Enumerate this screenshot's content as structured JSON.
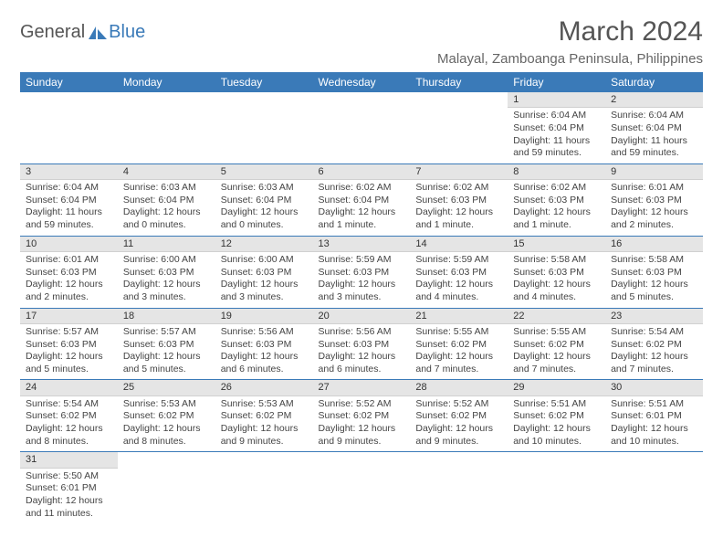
{
  "logo": {
    "general": "General",
    "blue": "Blue"
  },
  "title": "March 2024",
  "location": "Malayal, Zamboanga Peninsula, Philippines",
  "colors": {
    "header_bg": "#3a7ab8",
    "header_text": "#ffffff",
    "daynum_bg": "#e5e5e5",
    "border": "#3a7ab8",
    "text": "#444444"
  },
  "day_headers": [
    "Sunday",
    "Monday",
    "Tuesday",
    "Wednesday",
    "Thursday",
    "Friday",
    "Saturday"
  ],
  "weeks": [
    [
      null,
      null,
      null,
      null,
      null,
      {
        "n": "1",
        "sunrise": "Sunrise: 6:04 AM",
        "sunset": "Sunset: 6:04 PM",
        "daylight": "Daylight: 11 hours and 59 minutes."
      },
      {
        "n": "2",
        "sunrise": "Sunrise: 6:04 AM",
        "sunset": "Sunset: 6:04 PM",
        "daylight": "Daylight: 11 hours and 59 minutes."
      }
    ],
    [
      {
        "n": "3",
        "sunrise": "Sunrise: 6:04 AM",
        "sunset": "Sunset: 6:04 PM",
        "daylight": "Daylight: 11 hours and 59 minutes."
      },
      {
        "n": "4",
        "sunrise": "Sunrise: 6:03 AM",
        "sunset": "Sunset: 6:04 PM",
        "daylight": "Daylight: 12 hours and 0 minutes."
      },
      {
        "n": "5",
        "sunrise": "Sunrise: 6:03 AM",
        "sunset": "Sunset: 6:04 PM",
        "daylight": "Daylight: 12 hours and 0 minutes."
      },
      {
        "n": "6",
        "sunrise": "Sunrise: 6:02 AM",
        "sunset": "Sunset: 6:04 PM",
        "daylight": "Daylight: 12 hours and 1 minute."
      },
      {
        "n": "7",
        "sunrise": "Sunrise: 6:02 AM",
        "sunset": "Sunset: 6:03 PM",
        "daylight": "Daylight: 12 hours and 1 minute."
      },
      {
        "n": "8",
        "sunrise": "Sunrise: 6:02 AM",
        "sunset": "Sunset: 6:03 PM",
        "daylight": "Daylight: 12 hours and 1 minute."
      },
      {
        "n": "9",
        "sunrise": "Sunrise: 6:01 AM",
        "sunset": "Sunset: 6:03 PM",
        "daylight": "Daylight: 12 hours and 2 minutes."
      }
    ],
    [
      {
        "n": "10",
        "sunrise": "Sunrise: 6:01 AM",
        "sunset": "Sunset: 6:03 PM",
        "daylight": "Daylight: 12 hours and 2 minutes."
      },
      {
        "n": "11",
        "sunrise": "Sunrise: 6:00 AM",
        "sunset": "Sunset: 6:03 PM",
        "daylight": "Daylight: 12 hours and 3 minutes."
      },
      {
        "n": "12",
        "sunrise": "Sunrise: 6:00 AM",
        "sunset": "Sunset: 6:03 PM",
        "daylight": "Daylight: 12 hours and 3 minutes."
      },
      {
        "n": "13",
        "sunrise": "Sunrise: 5:59 AM",
        "sunset": "Sunset: 6:03 PM",
        "daylight": "Daylight: 12 hours and 3 minutes."
      },
      {
        "n": "14",
        "sunrise": "Sunrise: 5:59 AM",
        "sunset": "Sunset: 6:03 PM",
        "daylight": "Daylight: 12 hours and 4 minutes."
      },
      {
        "n": "15",
        "sunrise": "Sunrise: 5:58 AM",
        "sunset": "Sunset: 6:03 PM",
        "daylight": "Daylight: 12 hours and 4 minutes."
      },
      {
        "n": "16",
        "sunrise": "Sunrise: 5:58 AM",
        "sunset": "Sunset: 6:03 PM",
        "daylight": "Daylight: 12 hours and 5 minutes."
      }
    ],
    [
      {
        "n": "17",
        "sunrise": "Sunrise: 5:57 AM",
        "sunset": "Sunset: 6:03 PM",
        "daylight": "Daylight: 12 hours and 5 minutes."
      },
      {
        "n": "18",
        "sunrise": "Sunrise: 5:57 AM",
        "sunset": "Sunset: 6:03 PM",
        "daylight": "Daylight: 12 hours and 5 minutes."
      },
      {
        "n": "19",
        "sunrise": "Sunrise: 5:56 AM",
        "sunset": "Sunset: 6:03 PM",
        "daylight": "Daylight: 12 hours and 6 minutes."
      },
      {
        "n": "20",
        "sunrise": "Sunrise: 5:56 AM",
        "sunset": "Sunset: 6:03 PM",
        "daylight": "Daylight: 12 hours and 6 minutes."
      },
      {
        "n": "21",
        "sunrise": "Sunrise: 5:55 AM",
        "sunset": "Sunset: 6:02 PM",
        "daylight": "Daylight: 12 hours and 7 minutes."
      },
      {
        "n": "22",
        "sunrise": "Sunrise: 5:55 AM",
        "sunset": "Sunset: 6:02 PM",
        "daylight": "Daylight: 12 hours and 7 minutes."
      },
      {
        "n": "23",
        "sunrise": "Sunrise: 5:54 AM",
        "sunset": "Sunset: 6:02 PM",
        "daylight": "Daylight: 12 hours and 7 minutes."
      }
    ],
    [
      {
        "n": "24",
        "sunrise": "Sunrise: 5:54 AM",
        "sunset": "Sunset: 6:02 PM",
        "daylight": "Daylight: 12 hours and 8 minutes."
      },
      {
        "n": "25",
        "sunrise": "Sunrise: 5:53 AM",
        "sunset": "Sunset: 6:02 PM",
        "daylight": "Daylight: 12 hours and 8 minutes."
      },
      {
        "n": "26",
        "sunrise": "Sunrise: 5:53 AM",
        "sunset": "Sunset: 6:02 PM",
        "daylight": "Daylight: 12 hours and 9 minutes."
      },
      {
        "n": "27",
        "sunrise": "Sunrise: 5:52 AM",
        "sunset": "Sunset: 6:02 PM",
        "daylight": "Daylight: 12 hours and 9 minutes."
      },
      {
        "n": "28",
        "sunrise": "Sunrise: 5:52 AM",
        "sunset": "Sunset: 6:02 PM",
        "daylight": "Daylight: 12 hours and 9 minutes."
      },
      {
        "n": "29",
        "sunrise": "Sunrise: 5:51 AM",
        "sunset": "Sunset: 6:02 PM",
        "daylight": "Daylight: 12 hours and 10 minutes."
      },
      {
        "n": "30",
        "sunrise": "Sunrise: 5:51 AM",
        "sunset": "Sunset: 6:01 PM",
        "daylight": "Daylight: 12 hours and 10 minutes."
      }
    ],
    [
      {
        "n": "31",
        "sunrise": "Sunrise: 5:50 AM",
        "sunset": "Sunset: 6:01 PM",
        "daylight": "Daylight: 12 hours and 11 minutes."
      },
      null,
      null,
      null,
      null,
      null,
      null
    ]
  ]
}
